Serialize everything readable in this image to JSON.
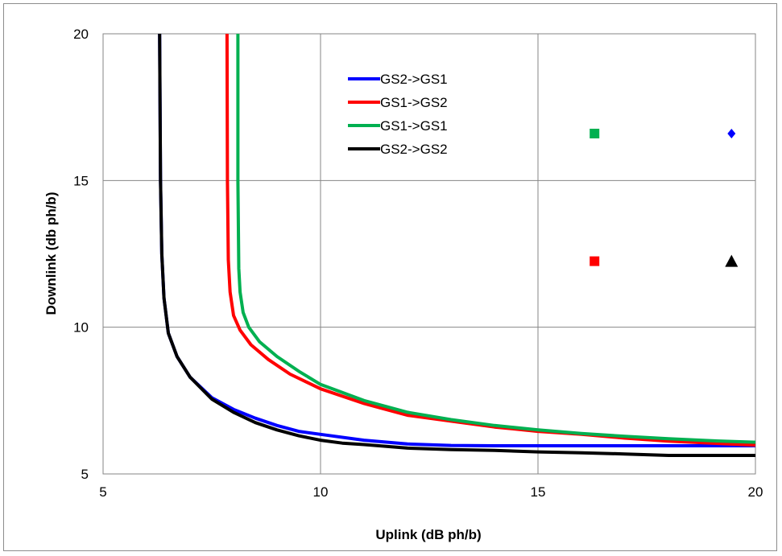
{
  "chart_data": {
    "type": "line",
    "title": "",
    "xlabel": "Uplink (dB ph/b)",
    "ylabel": "Downlink (db ph/b)",
    "xlim": [
      5,
      20
    ],
    "ylim": [
      5,
      20
    ],
    "xticks": [
      5,
      10,
      15,
      20
    ],
    "yticks": [
      5,
      10,
      15,
      20
    ],
    "grid": true,
    "legend_position": "top-center",
    "series": [
      {
        "name": "GS2->GS1",
        "color": "#0000ff",
        "x": [
          6.3,
          6.32,
          6.35,
          6.4,
          6.5,
          6.7,
          7.0,
          7.5,
          8.0,
          8.5,
          9.0,
          9.5,
          10.0,
          11.0,
          12.0,
          13.0,
          14.0,
          15.0,
          16.0,
          17.0,
          18.0,
          19.0,
          20.0
        ],
        "y": [
          20,
          15,
          12.5,
          11.0,
          9.8,
          9.0,
          8.3,
          7.6,
          7.2,
          6.9,
          6.65,
          6.45,
          6.35,
          6.15,
          6.02,
          5.97,
          5.96,
          5.96,
          5.96,
          5.96,
          5.96,
          5.96,
          5.96
        ]
      },
      {
        "name": "GS1->GS2",
        "color": "#ff0000",
        "x": [
          7.85,
          7.86,
          7.88,
          7.92,
          8.0,
          8.15,
          8.4,
          8.8,
          9.3,
          10.0,
          11.0,
          12.0,
          13.0,
          14.0,
          15.0,
          16.0,
          17.0,
          18.0,
          19.0,
          20.0
        ],
        "y": [
          20,
          15,
          12.3,
          11.2,
          10.4,
          9.9,
          9.4,
          8.9,
          8.4,
          7.9,
          7.4,
          7.0,
          6.8,
          6.6,
          6.45,
          6.35,
          6.22,
          6.12,
          6.05,
          5.98
        ]
      },
      {
        "name": "GS1->GS1",
        "color": "#00b050",
        "x": [
          8.1,
          8.1,
          8.12,
          8.15,
          8.22,
          8.35,
          8.6,
          9.0,
          9.5,
          10.0,
          11.0,
          12.0,
          13.0,
          14.0,
          15.0,
          16.0,
          17.0,
          18.0,
          19.0,
          20.0
        ],
        "y": [
          20,
          15,
          12.0,
          11.2,
          10.5,
          10.0,
          9.5,
          9.0,
          8.5,
          8.05,
          7.5,
          7.1,
          6.85,
          6.65,
          6.5,
          6.38,
          6.28,
          6.2,
          6.13,
          6.08
        ]
      },
      {
        "name": "GS2->GS2",
        "color": "#000000",
        "x": [
          6.3,
          6.32,
          6.35,
          6.4,
          6.5,
          6.7,
          7.0,
          7.5,
          8.0,
          8.5,
          9.0,
          9.5,
          10.0,
          10.5,
          11.0,
          12.0,
          13.0,
          14.0,
          15.0,
          16.0,
          17.0,
          18.0,
          19.0,
          20.0
        ],
        "y": [
          20,
          15,
          12.5,
          11.0,
          9.8,
          9.0,
          8.3,
          7.55,
          7.1,
          6.75,
          6.5,
          6.3,
          6.15,
          6.05,
          6.0,
          5.88,
          5.83,
          5.8,
          5.75,
          5.72,
          5.68,
          5.63,
          5.63,
          5.63
        ]
      }
    ],
    "markers": [
      {
        "shape": "square",
        "color": "#00b050",
        "x": 16.3,
        "y": 16.6
      },
      {
        "shape": "diamond",
        "color": "#0000ff",
        "x": 19.45,
        "y": 16.6
      },
      {
        "shape": "square",
        "color": "#ff0000",
        "x": 16.3,
        "y": 12.25
      },
      {
        "shape": "triangle",
        "color": "#000000",
        "x": 19.45,
        "y": 12.25
      }
    ]
  }
}
